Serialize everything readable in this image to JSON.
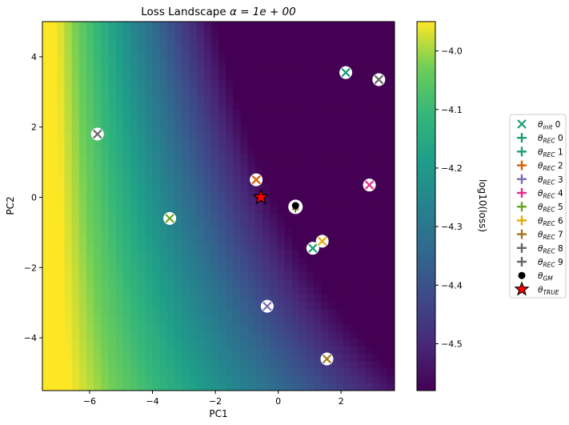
{
  "chart_data": {
    "type": "heatmap",
    "title_main": "Loss Landscape ",
    "title_math": "α = 1e + 00",
    "xlabel": "PC1",
    "ylabel": "PC2",
    "xlim": [
      -7.5,
      3.7
    ],
    "ylim": [
      -5.5,
      5.0
    ],
    "xticks": [
      -6,
      -4,
      -2,
      0,
      2
    ],
    "yticks": [
      -4,
      -2,
      0,
      2,
      4
    ],
    "colorbar": {
      "label": "log10(loss)",
      "range": [
        -4.58,
        -3.95
      ],
      "ticks": [
        -4.0,
        -4.1,
        -4.2,
        -4.3,
        -4.4,
        -4.5
      ]
    },
    "points": [
      {
        "series": "θ_REC 9",
        "x": -5.75,
        "y": 1.8,
        "color": "#666666",
        "marker": "x-on-white"
      },
      {
        "series": "θ_REC 5",
        "x": -3.45,
        "y": -0.6,
        "color": "#66a61e",
        "marker": "x-on-white"
      },
      {
        "series": "θ_REC 2",
        "x": -0.7,
        "y": 0.5,
        "color": "#d95f02",
        "marker": "x-on-white"
      },
      {
        "series": "θ_REC 3",
        "x": -0.35,
        "y": -3.1,
        "color": "#7570b3",
        "marker": "x-on-white"
      },
      {
        "series": "θ_REC 1",
        "x": 1.1,
        "y": -1.45,
        "color": "#1b9e77",
        "marker": "x-on-white"
      },
      {
        "series": "θ_REC 6",
        "x": 1.4,
        "y": -1.25,
        "color": "#e6ab02",
        "marker": "x-on-white"
      },
      {
        "series": "θ_REC 7",
        "x": 1.55,
        "y": -4.6,
        "color": "#a6761d",
        "marker": "x-on-white"
      },
      {
        "series": "θ_REC 0",
        "x": 2.15,
        "y": 3.55,
        "color": "#1b9e77",
        "marker": "x-on-white"
      },
      {
        "series": "θ_REC 4",
        "x": 2.9,
        "y": 0.35,
        "color": "#e7298a",
        "marker": "x-on-white"
      },
      {
        "series": "θ_REC 8",
        "x": 3.2,
        "y": 3.35,
        "color": "#666666",
        "marker": "x-on-white"
      },
      {
        "series": "θ_GM",
        "x": 0.55,
        "y": -0.27,
        "color": "#000000",
        "marker": "dot"
      },
      {
        "series": "θ_TRUE",
        "x": -0.55,
        "y": 0.0,
        "color": "#ff0000",
        "marker": "star"
      }
    ],
    "legend": [
      {
        "label": "θ",
        "sub": "init",
        "num": " 0",
        "marker": "x",
        "color": "#1b9e77"
      },
      {
        "label": "θ",
        "sub": "REC",
        "num": " 0",
        "marker": "plus",
        "color": "#1b9e77"
      },
      {
        "label": "θ",
        "sub": "REC",
        "num": " 1",
        "marker": "plus",
        "color": "#1b9e77"
      },
      {
        "label": "θ",
        "sub": "REC",
        "num": " 2",
        "marker": "plus",
        "color": "#d95f02"
      },
      {
        "label": "θ",
        "sub": "REC",
        "num": " 3",
        "marker": "plus",
        "color": "#7570b3"
      },
      {
        "label": "θ",
        "sub": "REC",
        "num": " 4",
        "marker": "plus",
        "color": "#e7298a"
      },
      {
        "label": "θ",
        "sub": "REC",
        "num": " 5",
        "marker": "plus",
        "color": "#66a61e"
      },
      {
        "label": "θ",
        "sub": "REC",
        "num": " 6",
        "marker": "plus",
        "color": "#e6ab02"
      },
      {
        "label": "θ",
        "sub": "REC",
        "num": " 7",
        "marker": "plus",
        "color": "#a6761d"
      },
      {
        "label": "θ",
        "sub": "REC",
        "num": " 8",
        "marker": "plus",
        "color": "#666666"
      },
      {
        "label": "θ",
        "sub": "REC",
        "num": " 9",
        "marker": "plus",
        "color": "#666666"
      },
      {
        "label": "θ",
        "sub": "GM",
        "num": "",
        "marker": "dot",
        "color": "#000000"
      },
      {
        "label": "θ",
        "sub": "TRUE",
        "num": "",
        "marker": "star",
        "color": "#ff0000"
      }
    ]
  }
}
